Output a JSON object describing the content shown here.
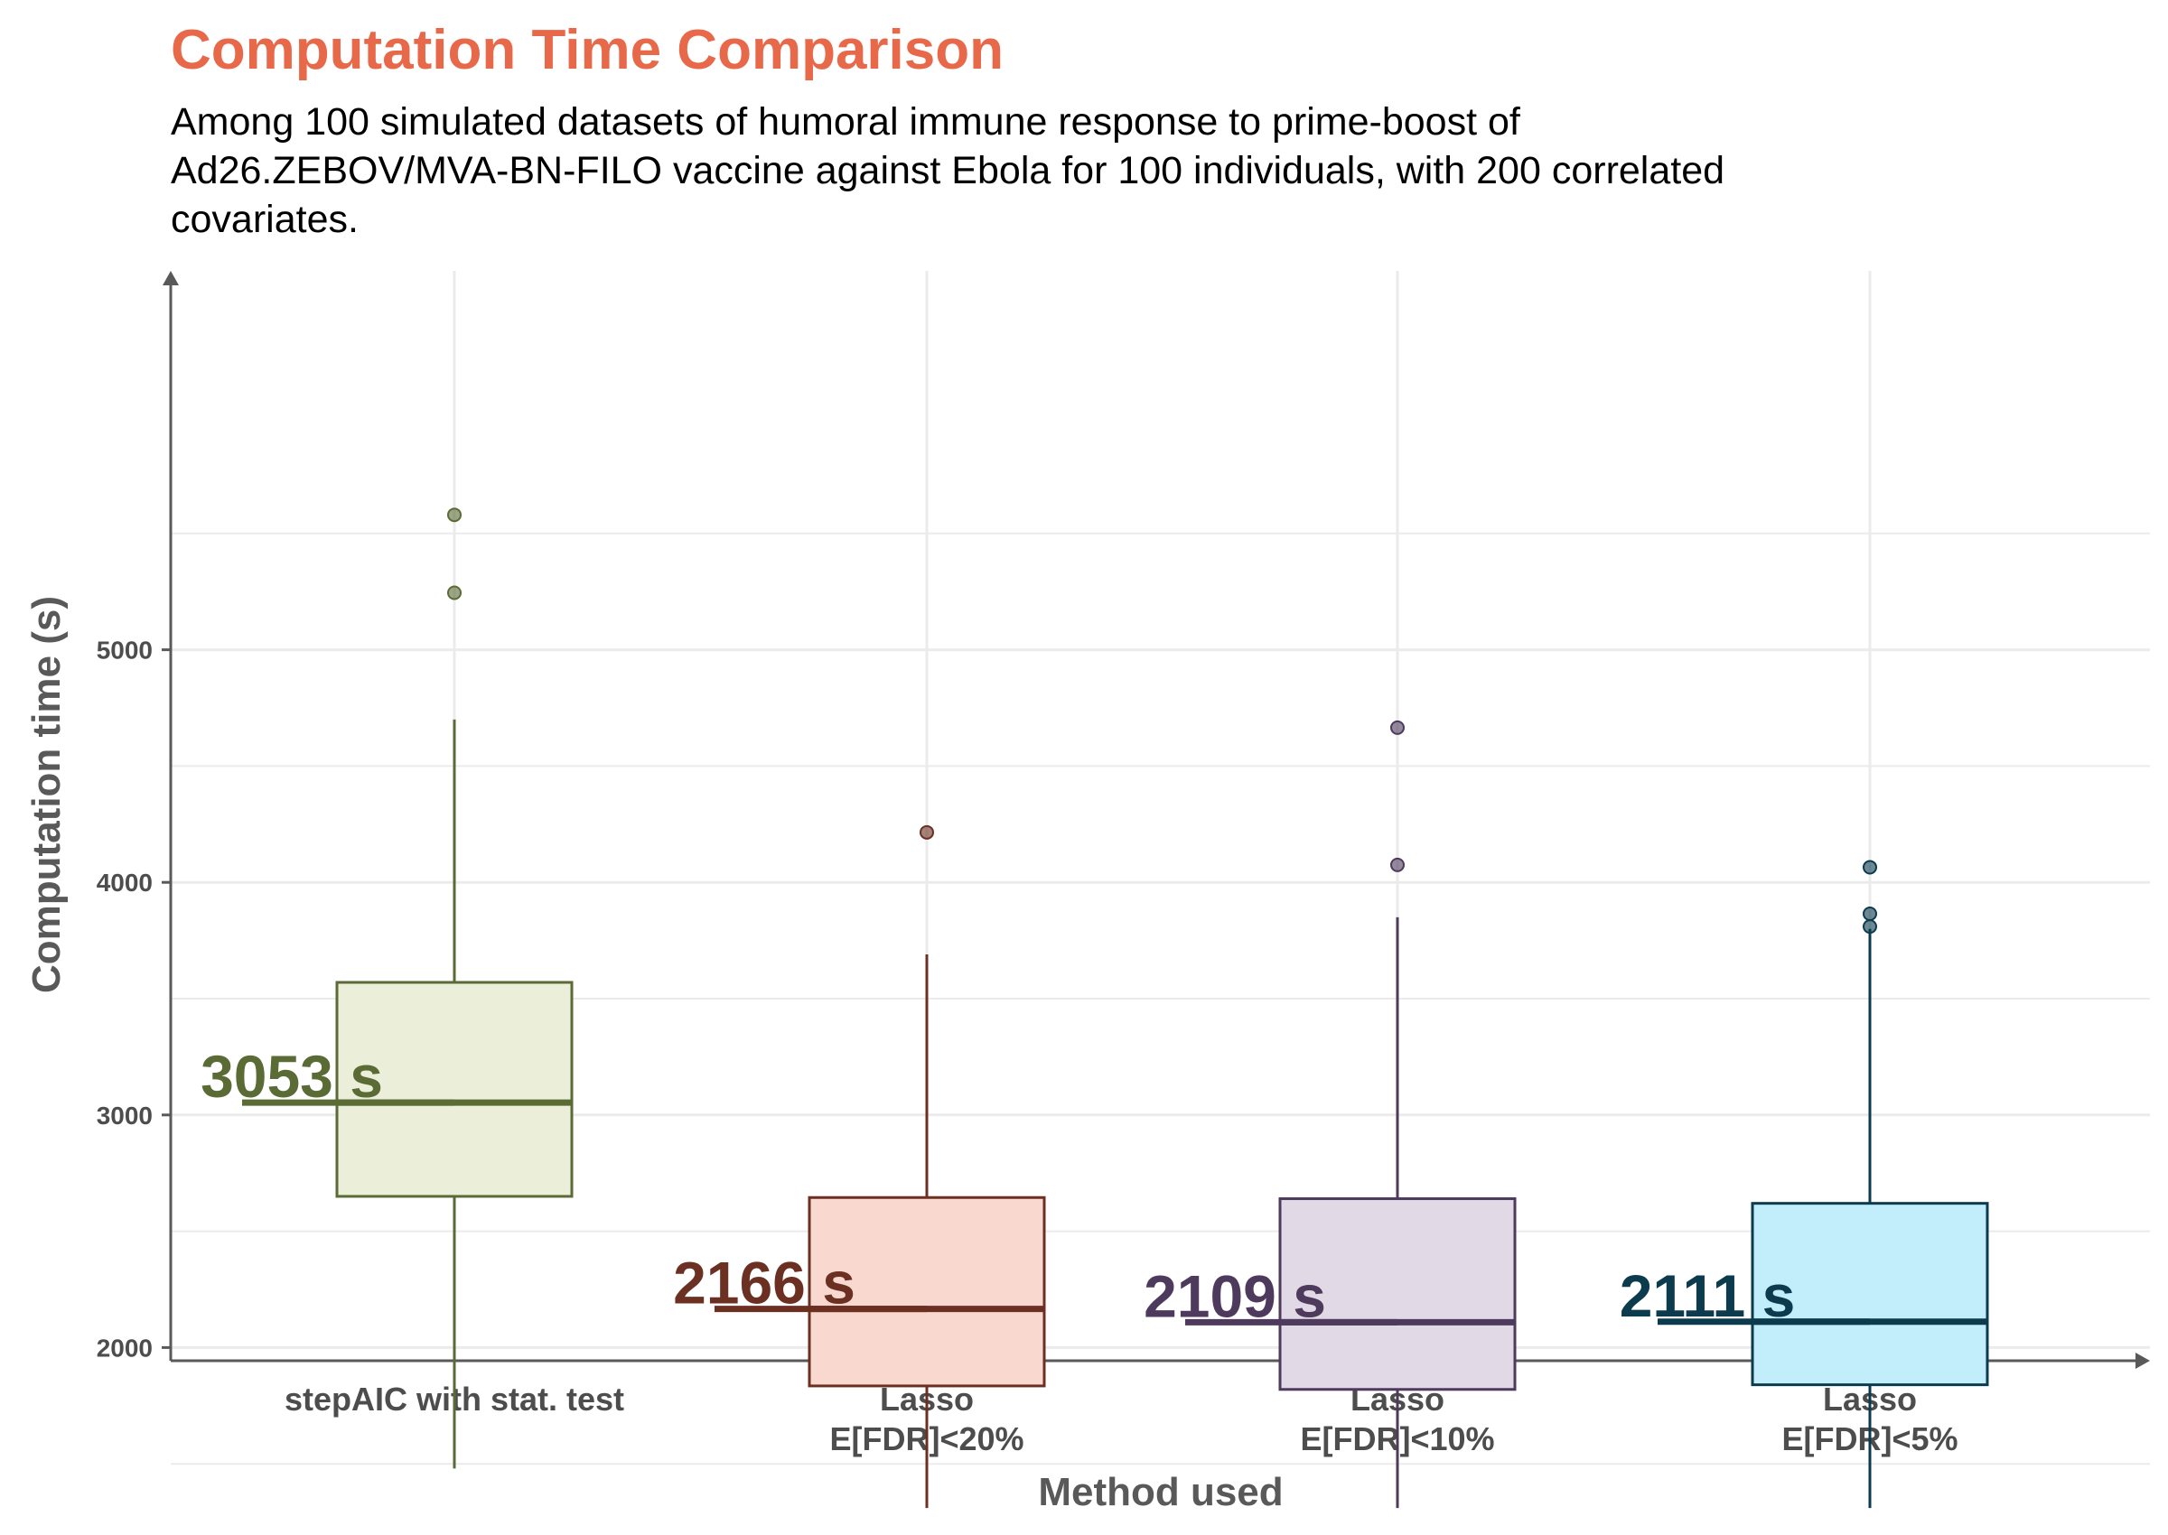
{
  "chart_data": {
    "type": "boxplot",
    "title": "Computation Time Comparison",
    "subtitle": "Among 100 simulated datasets of humoral immune response to prime-boost of Ad26.ZEBOV/MVA-BN-FILO vaccine against Ebola for 100 individuals, with 200 correlated covariates.",
    "xlabel": "Method used",
    "ylabel": "Computation time (s)",
    "ylim": [
      1300,
      5700
    ],
    "yticks": [
      2000,
      3000,
      4000,
      5000
    ],
    "grid": true,
    "series": [
      {
        "category": "stepAIC with stat. test",
        "category_lines": [
          "stepAIC with stat. test"
        ],
        "min": 1480,
        "q1": 2650,
        "median": 3053,
        "q3": 3570,
        "max": 4700,
        "outliers": [
          5580,
          5245
        ],
        "median_label": "3053 s",
        "stroke": "#5a6b35",
        "fill": "#ebeed9"
      },
      {
        "category": "Lasso E[FDR]<20%",
        "category_lines": [
          "Lasso",
          "E[FDR]<20%"
        ],
        "min": 1310,
        "q1": 1835,
        "median": 2166,
        "q3": 2645,
        "max": 3690,
        "outliers": [
          4215
        ],
        "median_label": "2166 s",
        "stroke": "#6b3022",
        "fill": "#f8d8cf"
      },
      {
        "category": "Lasso E[FDR]<10%",
        "category_lines": [
          "Lasso",
          "E[FDR]<10%"
        ],
        "min": 1310,
        "q1": 1820,
        "median": 2109,
        "q3": 2640,
        "max": 3850,
        "outliers": [
          4665,
          4075
        ],
        "median_label": "2109 s",
        "stroke": "#4d3a5c",
        "fill": "#e1d9e6"
      },
      {
        "category": "Lasso E[FDR]<5%",
        "category_lines": [
          "Lasso",
          "E[FDR]<5%"
        ],
        "min": 1310,
        "q1": 1840,
        "median": 2111,
        "q3": 2620,
        "max": 3800,
        "outliers": [
          4065,
          3865,
          3810
        ],
        "median_label": "2111 s",
        "stroke": "#0b3b4d",
        "fill": "#c2eefc"
      }
    ],
    "colors": {
      "title": "#e8694a",
      "axis": "#595959",
      "grid": "#ebebeb"
    }
  }
}
